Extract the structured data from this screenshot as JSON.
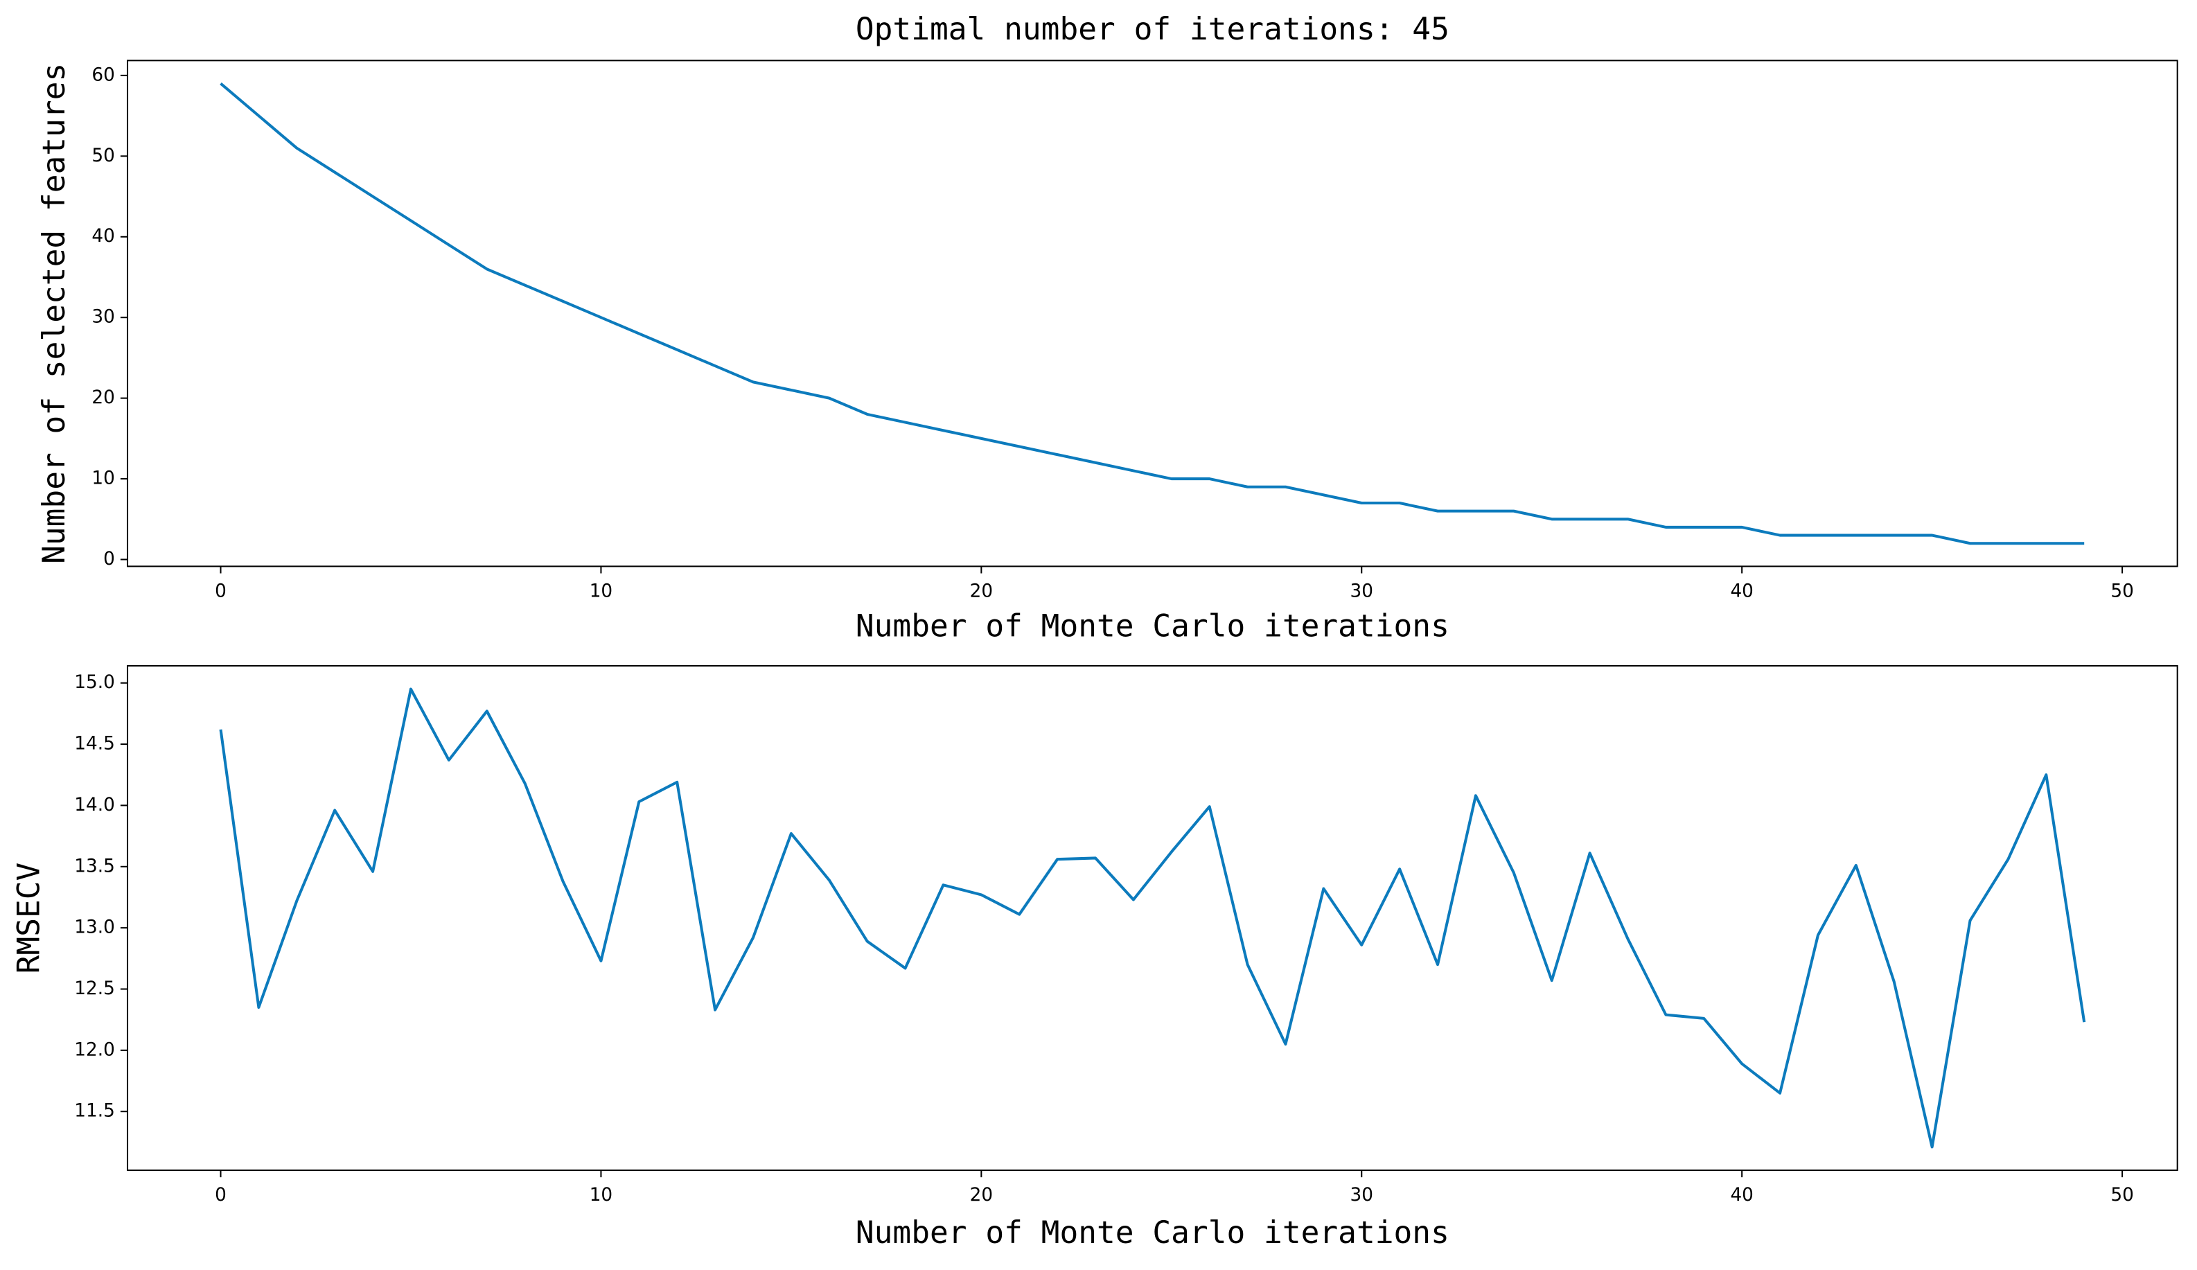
{
  "chart_data": [
    {
      "type": "line",
      "title": "Optimal number of iterations: 45",
      "x_label": "Number of Monte Carlo iterations",
      "y_label": "Number of selected features",
      "x": [
        0,
        1,
        2,
        3,
        4,
        5,
        6,
        7,
        8,
        9,
        10,
        11,
        12,
        13,
        14,
        15,
        16,
        17,
        18,
        19,
        20,
        21,
        22,
        23,
        24,
        25,
        26,
        27,
        28,
        29,
        30,
        31,
        32,
        33,
        34,
        35,
        36,
        37,
        38,
        39,
        40,
        41,
        42,
        43,
        44,
        45,
        46,
        47,
        48,
        49
      ],
      "values": [
        59,
        55,
        51,
        48,
        45,
        42,
        39,
        36,
        34,
        32,
        30,
        28,
        26,
        24,
        22,
        21,
        20,
        18,
        17,
        16,
        15,
        14,
        13,
        12,
        11,
        10,
        10,
        9,
        9,
        8,
        7,
        7,
        6,
        6,
        6,
        5,
        5,
        5,
        4,
        4,
        4,
        3,
        3,
        3,
        3,
        3,
        2,
        2,
        2,
        2
      ],
      "color": "#0c7bbd",
      "xlim": [
        -2.45,
        51.45
      ],
      "xticks": [
        0,
        10,
        20,
        30,
        40,
        50
      ],
      "ylim": [
        -0.85,
        61.85
      ],
      "yticks": [
        0,
        10,
        20,
        30,
        40,
        50,
        60
      ]
    },
    {
      "type": "line",
      "x_label": "Number of Monte Carlo iterations",
      "y_label": "RMSECV",
      "x": [
        0,
        1,
        2,
        3,
        4,
        5,
        6,
        7,
        8,
        9,
        10,
        11,
        12,
        13,
        14,
        15,
        16,
        17,
        18,
        19,
        20,
        21,
        22,
        23,
        24,
        25,
        26,
        27,
        28,
        29,
        30,
        31,
        32,
        33,
        34,
        35,
        36,
        37,
        38,
        39,
        40,
        41,
        42,
        43,
        44,
        45,
        46,
        47,
        48,
        49
      ],
      "values": [
        14.62,
        12.35,
        13.22,
        13.96,
        13.46,
        14.95,
        14.37,
        14.77,
        14.18,
        13.38,
        12.73,
        14.03,
        14.19,
        12.33,
        12.92,
        13.77,
        13.39,
        12.89,
        12.67,
        13.35,
        13.27,
        13.11,
        13.56,
        13.57,
        13.23,
        13.62,
        13.99,
        12.7,
        12.05,
        13.32,
        12.86,
        13.48,
        12.7,
        14.08,
        13.45,
        12.57,
        13.61,
        12.91,
        12.29,
        12.26,
        11.89,
        11.65,
        12.94,
        13.51,
        12.56,
        11.21,
        13.06,
        13.56,
        14.25,
        12.23
      ],
      "color": "#0c7bbd",
      "xlim": [
        -2.45,
        51.45
      ],
      "xticks": [
        0,
        10,
        20,
        30,
        40,
        50
      ],
      "ylim": [
        11.02,
        15.14
      ],
      "yticks": [
        11.5,
        {
          "value": 12,
          "label": "12.0"
        },
        12.5,
        {
          "value": 13,
          "label": "13.0"
        },
        13.5,
        {
          "value": 14,
          "label": "14.0"
        },
        14.5,
        {
          "value": 15,
          "label": "15.0"
        }
      ]
    }
  ]
}
